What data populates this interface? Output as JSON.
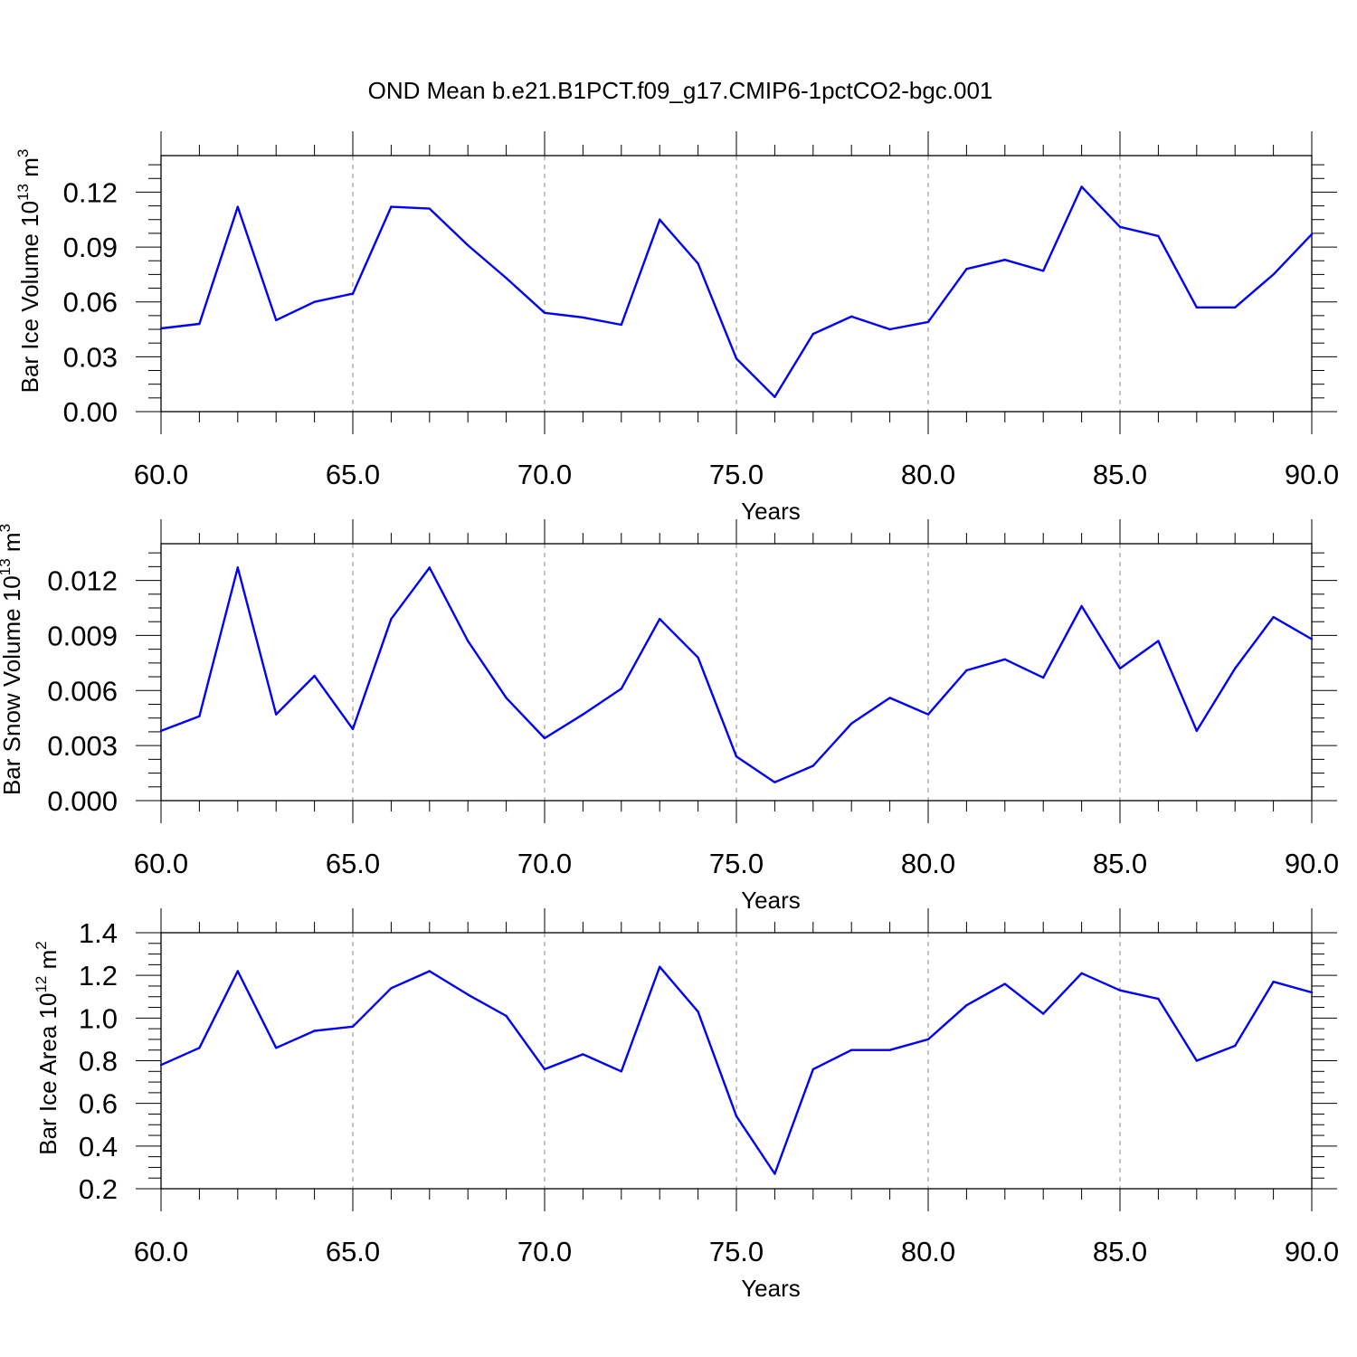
{
  "title": "OND Mean b.e21.B1PCT.f09_g17.CMIP6-1pctCO2-bgc.001",
  "colors": {
    "line": "#0000ff",
    "grid": "#888888",
    "axis": "#000000"
  },
  "chart_data": [
    {
      "type": "line",
      "xlabel": "Years",
      "ylabel": {
        "main": "Bar Ice Volume 10",
        "exp": "13",
        "unit": " m",
        "unit_exp": "3"
      },
      "xlim": [
        60,
        90
      ],
      "ylim": [
        0,
        0.14
      ],
      "xticks": [
        60,
        65,
        70,
        75,
        80,
        85,
        90
      ],
      "xticklabels": [
        "60.0",
        "65.0",
        "70.0",
        "75.0",
        "80.0",
        "85.0",
        "90.0"
      ],
      "yticks": [
        0,
        0.03,
        0.06,
        0.09,
        0.12
      ],
      "yticklabels": [
        "0.00",
        "0.03",
        "0.06",
        "0.09",
        "0.12"
      ],
      "x": [
        60,
        61,
        62,
        63,
        64,
        65,
        66,
        67,
        68,
        69,
        70,
        71,
        72,
        73,
        74,
        75,
        76,
        77,
        78,
        79,
        80,
        81,
        82,
        83,
        84,
        85,
        86,
        87,
        88,
        89,
        90
      ],
      "values": [
        0.0455,
        0.048,
        0.112,
        0.05,
        0.06,
        0.0645,
        0.112,
        0.111,
        0.091,
        0.073,
        0.054,
        0.0515,
        0.0475,
        0.105,
        0.081,
        0.029,
        0.008,
        0.0425,
        0.052,
        0.045,
        0.049,
        0.078,
        0.083,
        0.077,
        0.123,
        0.101,
        0.096,
        0.057,
        0.057,
        0.075,
        0.097
      ]
    },
    {
      "type": "line",
      "xlabel": "Years",
      "ylabel": {
        "main": "Bar Snow Volume 10",
        "exp": "13",
        "unit": " m",
        "unit_exp": "3"
      },
      "xlim": [
        60,
        90
      ],
      "ylim": [
        0,
        0.014
      ],
      "xticks": [
        60,
        65,
        70,
        75,
        80,
        85,
        90
      ],
      "xticklabels": [
        "60.0",
        "65.0",
        "70.0",
        "75.0",
        "80.0",
        "85.0",
        "90.0"
      ],
      "yticks": [
        0,
        0.003,
        0.006,
        0.009,
        0.012
      ],
      "yticklabels": [
        "0.000",
        "0.003",
        "0.006",
        "0.009",
        "0.012"
      ],
      "x": [
        60,
        61,
        62,
        63,
        64,
        65,
        66,
        67,
        68,
        69,
        70,
        71,
        72,
        73,
        74,
        75,
        76,
        77,
        78,
        79,
        80,
        81,
        82,
        83,
        84,
        85,
        86,
        87,
        88,
        89,
        90
      ],
      "values": [
        0.0038,
        0.0046,
        0.0127,
        0.0047,
        0.0068,
        0.0039,
        0.0099,
        0.0127,
        0.0087,
        0.0056,
        0.0034,
        0.0047,
        0.0061,
        0.0099,
        0.0078,
        0.0024,
        0.001,
        0.0019,
        0.0042,
        0.0056,
        0.0047,
        0.0071,
        0.0077,
        0.0067,
        0.0106,
        0.0072,
        0.0087,
        0.0038,
        0.0072,
        0.01,
        0.0088
      ]
    },
    {
      "type": "line",
      "xlabel": "Years",
      "ylabel": {
        "main": "Bar Ice Area 10",
        "exp": "12",
        "unit": " m",
        "unit_exp": "2"
      },
      "xlim": [
        60,
        90
      ],
      "ylim": [
        0.2,
        1.4
      ],
      "xticks": [
        60,
        65,
        70,
        75,
        80,
        85,
        90
      ],
      "xticklabels": [
        "60.0",
        "65.0",
        "70.0",
        "75.0",
        "80.0",
        "85.0",
        "90.0"
      ],
      "yticks": [
        0.2,
        0.4,
        0.6,
        0.8,
        1.0,
        1.2,
        1.4
      ],
      "yticklabels": [
        "0.2",
        "0.4",
        "0.6",
        "0.8",
        "1.0",
        "1.2",
        "1.4"
      ],
      "x": [
        60,
        61,
        62,
        63,
        64,
        65,
        66,
        67,
        68,
        69,
        70,
        71,
        72,
        73,
        74,
        75,
        76,
        77,
        78,
        79,
        80,
        81,
        82,
        83,
        84,
        85,
        86,
        87,
        88,
        89,
        90
      ],
      "values": [
        0.78,
        0.86,
        1.22,
        0.86,
        0.94,
        0.96,
        1.14,
        1.22,
        1.11,
        1.01,
        0.76,
        0.83,
        0.75,
        1.24,
        1.03,
        0.54,
        0.27,
        0.76,
        0.85,
        0.85,
        0.9,
        1.06,
        1.16,
        1.02,
        1.21,
        1.13,
        1.09,
        0.8,
        0.87,
        1.17,
        1.12
      ]
    }
  ]
}
